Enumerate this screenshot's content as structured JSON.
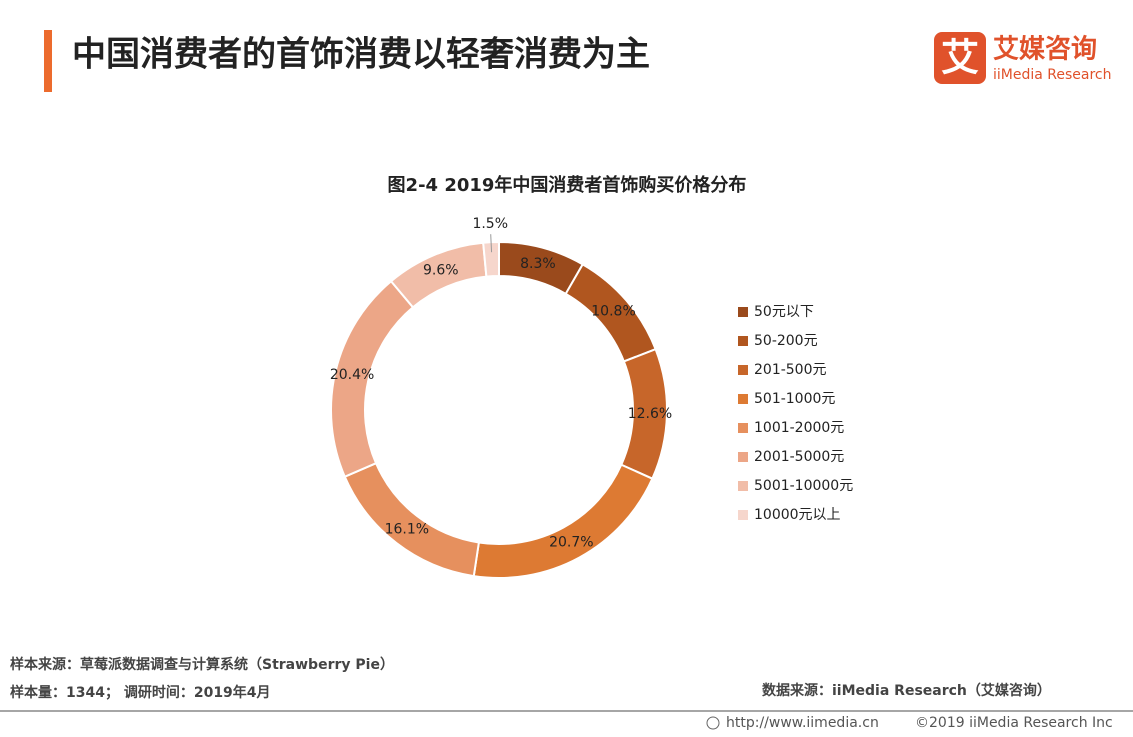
{
  "header": {
    "title": "中国消费者的首饰消费以轻奢消费为主",
    "logo_mark": "艾",
    "logo_name": "艾媒咨询",
    "logo_sub": "iiMedia Research"
  },
  "chart_data": {
    "type": "donut",
    "title": "图2-4 2019年中国消费者首饰购买价格分布",
    "categories": [
      "50元以下",
      "50-200元",
      "201-500元",
      "501-1000元",
      "1001-2000元",
      "2001-5000元",
      "5001-10000元",
      "10000元以上"
    ],
    "values": [
      8.3,
      10.8,
      12.6,
      20.7,
      16.1,
      20.4,
      9.6,
      1.5
    ],
    "value_labels": [
      "8.3%",
      "10.8%",
      "12.6%",
      "20.7%",
      "16.1%",
      "20.4%",
      "9.6%",
      "1.5%"
    ],
    "colors": [
      "#9a4a1c",
      "#b0561f",
      "#c7662a",
      "#dd7a33",
      "#e6905e",
      "#eca687",
      "#f1bda8",
      "#f6d6cc"
    ],
    "legend": "right"
  },
  "footer": {
    "sample_source": "样本来源：草莓派数据调查与计算系统（Strawberry Pie）",
    "sample_size": "样本量：1344； 调研时间：2019年4月",
    "data_source": "数据来源：iiMedia Research（艾媒咨询）",
    "url": "http://www.iimedia.cn",
    "copyright": "©2019  iiMedia Research  Inc"
  }
}
